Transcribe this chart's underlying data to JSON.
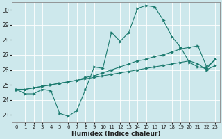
{
  "xlabel": "Humidex (Indice chaleur)",
  "bg_color": "#cde8ec",
  "line_color": "#1a7a6e",
  "grid_color": "#b0d8dc",
  "xlim": [
    -0.5,
    23.5
  ],
  "ylim": [
    22.5,
    30.5
  ],
  "yticks": [
    23,
    24,
    25,
    26,
    27,
    28,
    29,
    30
  ],
  "xticks": [
    0,
    1,
    2,
    3,
    4,
    5,
    6,
    7,
    8,
    9,
    10,
    11,
    12,
    13,
    14,
    15,
    16,
    17,
    18,
    19,
    20,
    21,
    22,
    23
  ],
  "line1_x": [
    0,
    1,
    2,
    3,
    4,
    5,
    6,
    7,
    8,
    9,
    10,
    11,
    12,
    13,
    14,
    15,
    16,
    17,
    18,
    19,
    20,
    21,
    22,
    23
  ],
  "line1_y": [
    24.7,
    24.4,
    24.4,
    24.7,
    24.6,
    23.1,
    22.9,
    23.3,
    24.7,
    26.2,
    26.1,
    28.5,
    27.9,
    28.5,
    30.1,
    30.3,
    30.2,
    29.3,
    28.2,
    27.5,
    26.5,
    26.2,
    26.1,
    26.7
  ],
  "line2_x": [
    0,
    1,
    2,
    3,
    4,
    5,
    6,
    7,
    8,
    9,
    10,
    11,
    12,
    13,
    14,
    15,
    16,
    17,
    18,
    19,
    20,
    21,
    22,
    23
  ],
  "line2_y": [
    24.7,
    24.7,
    24.8,
    24.9,
    25.0,
    25.1,
    25.2,
    25.3,
    25.5,
    25.6,
    25.8,
    26.0,
    26.2,
    26.4,
    26.6,
    26.7,
    26.9,
    27.0,
    27.2,
    27.4,
    27.5,
    27.6,
    26.2,
    26.7
  ],
  "line3_x": [
    0,
    1,
    2,
    3,
    4,
    5,
    6,
    7,
    8,
    9,
    10,
    11,
    12,
    13,
    14,
    15,
    16,
    17,
    18,
    19,
    20,
    21,
    22,
    23
  ],
  "line3_y": [
    24.7,
    24.7,
    24.8,
    24.9,
    25.0,
    25.1,
    25.2,
    25.3,
    25.4,
    25.5,
    25.6,
    25.7,
    25.8,
    25.9,
    26.0,
    26.1,
    26.2,
    26.3,
    26.4,
    26.5,
    26.6,
    26.4,
    26.0,
    26.3
  ]
}
